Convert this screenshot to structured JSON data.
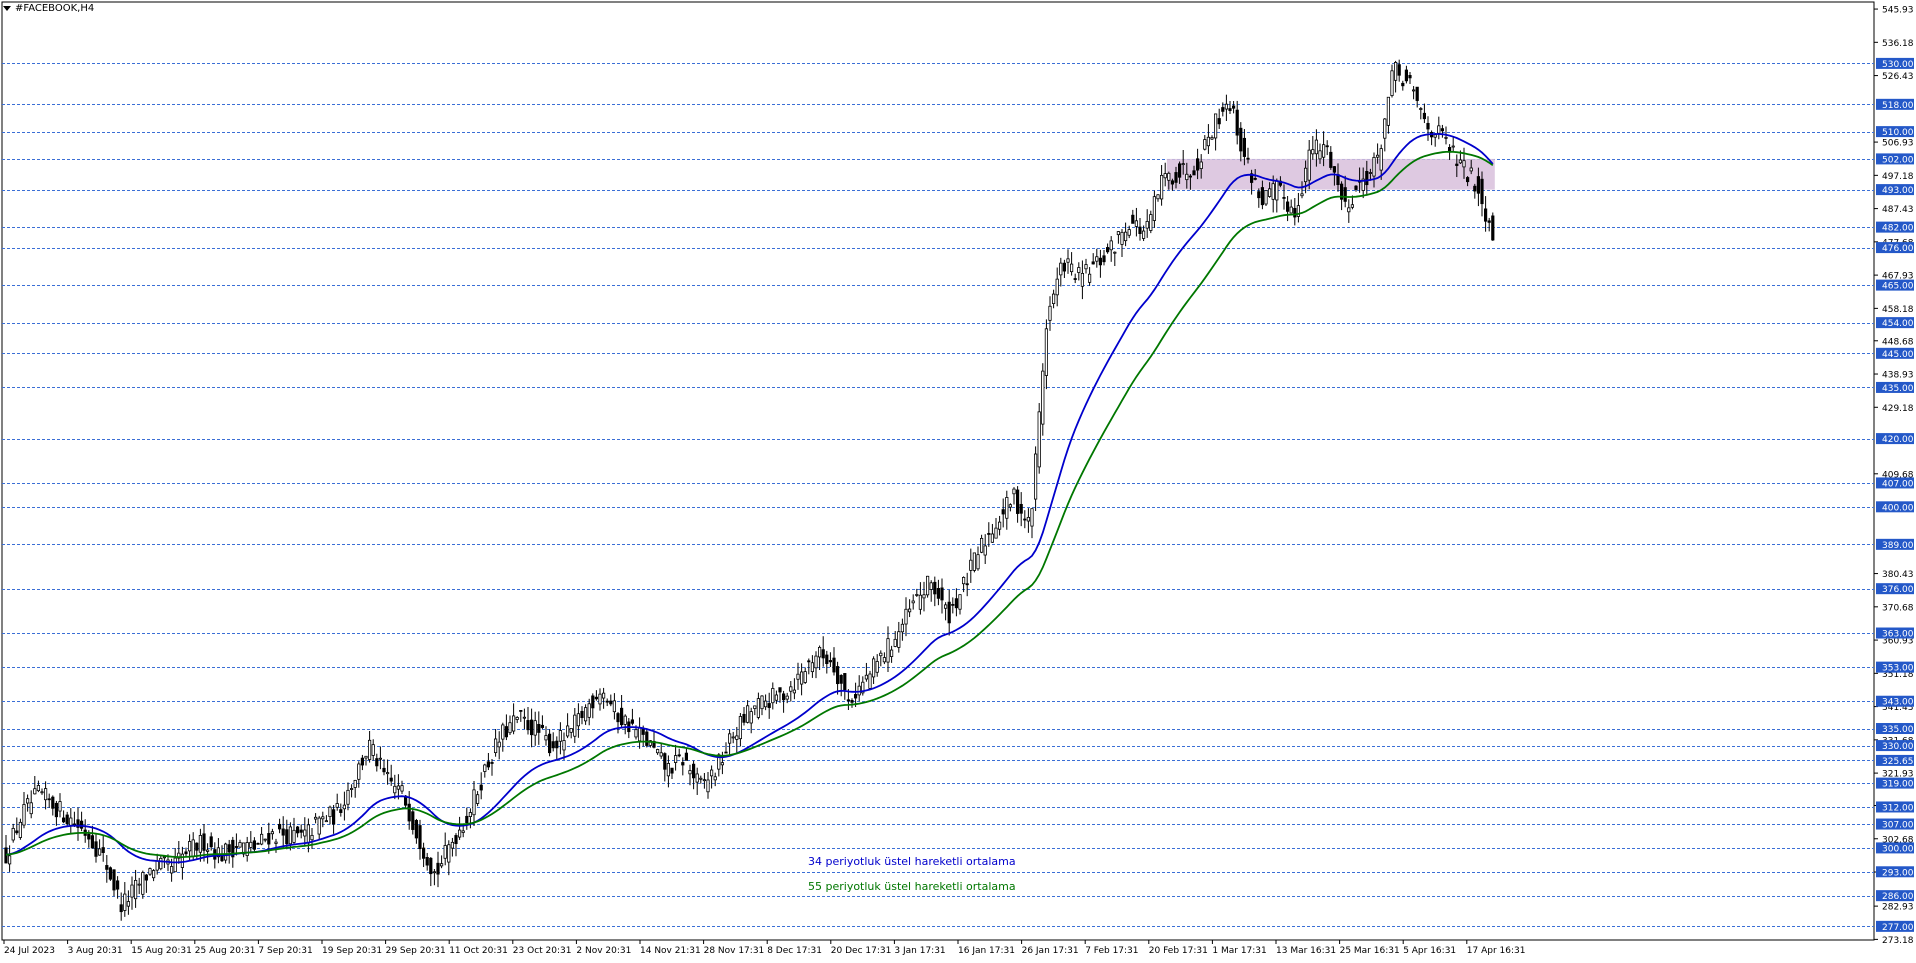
{
  "window": {
    "title": "#FACEBOOK,H4"
  },
  "chart_data": {
    "type": "candlestick",
    "symbol": "#FACEBOOK",
    "timeframe": "H4",
    "ylim": [
      273.0,
      548.0
    ],
    "y_tick_labels": [
      "545.93",
      "536.18",
      "526.43",
      "506.93",
      "497.18",
      "487.43",
      "477.68",
      "467.93",
      "458.18",
      "448.68",
      "438.93",
      "429.18",
      "409.68",
      "380.43",
      "370.68",
      "360.93",
      "351.18",
      "341.43",
      "331.68",
      "321.93",
      "312.43",
      "302.68",
      "292.93",
      "282.93",
      "273.18"
    ],
    "levels": [
      530.0,
      518.0,
      510.0,
      502.0,
      493.0,
      482.0,
      476.0,
      465.0,
      454.0,
      445.0,
      435.0,
      420.0,
      407.0,
      400.0,
      389.0,
      376.0,
      363.0,
      353.0,
      343.0,
      335.0,
      330.0,
      325.65,
      319.0,
      312.0,
      307.0,
      300.0,
      293.0,
      286.0,
      277.0
    ],
    "level_labels": [
      "530.00",
      "518.00",
      "510.00",
      "502.00",
      "493.00",
      "482.00",
      "476.00",
      "465.00",
      "454.00",
      "445.00",
      "435.00",
      "420.00",
      "407.00",
      "400.00",
      "389.00",
      "376.00",
      "363.00",
      "353.00",
      "343.00",
      "335.00",
      "330.00",
      "325.65",
      "319.00",
      "312.00",
      "307.00",
      "300.00",
      "293.00",
      "286.00",
      "277.00"
    ],
    "x_labels": [
      "24 Jul 2023",
      "3 Aug 20:31",
      "15 Aug 20:31",
      "25 Aug 20:31",
      "7 Sep 20:31",
      "19 Sep 20:31",
      "29 Sep 20:31",
      "11 Oct 20:31",
      "23 Oct 20:31",
      "2 Nov 20:31",
      "14 Nov 21:31",
      "28 Nov 17:31",
      "8 Dec 17:31",
      "20 Dec 17:31",
      "3 Jan 17:31",
      "16 Jan 17:31",
      "26 Jan 17:31",
      "7 Feb 17:31",
      "20 Feb 17:31",
      "1 Mar 17:31",
      "13 Mar 16:31",
      "25 Mar 16:31",
      "5 Apr 16:31",
      "17 Apr 16:31"
    ],
    "anchor_prices": [
      298,
      310,
      316,
      312,
      308,
      304,
      296,
      283,
      289,
      295,
      294,
      299,
      302,
      298,
      301,
      300,
      304,
      304,
      303,
      308,
      310,
      320,
      330,
      320,
      316,
      303,
      292,
      302,
      310,
      323,
      333,
      338,
      335,
      330,
      333,
      340,
      347,
      339,
      335,
      330,
      323,
      326,
      318,
      323,
      333,
      340,
      343,
      345,
      350,
      357,
      355,
      343,
      349,
      356,
      363,
      372,
      378,
      368,
      377,
      388,
      396,
      403,
      394,
      455,
      472,
      467,
      471,
      476,
      484,
      480,
      496,
      498,
      500,
      511,
      520,
      502,
      490,
      493,
      486,
      505,
      505,
      488,
      495,
      501,
      528,
      523,
      512,
      508,
      500,
      495,
      480
    ],
    "zone": {
      "from_label_index": 18,
      "to_label_index": 23,
      "low": 493.0,
      "high": 502.0,
      "color": "#d8c0dc"
    },
    "series": [
      {
        "name": "34 periyotluk üstel hareketli ortalama",
        "period": 34,
        "color": "#0000cc"
      },
      {
        "name": "55 periyotluk üstel hareketli ortalama",
        "period": 55,
        "color": "#007700"
      }
    ],
    "colors": {
      "grid": "#3b6fd6",
      "level_label_bg": "#2458c8",
      "level_label_text": "#ffffff",
      "candle": "#000000",
      "background": "#ffffff"
    }
  }
}
